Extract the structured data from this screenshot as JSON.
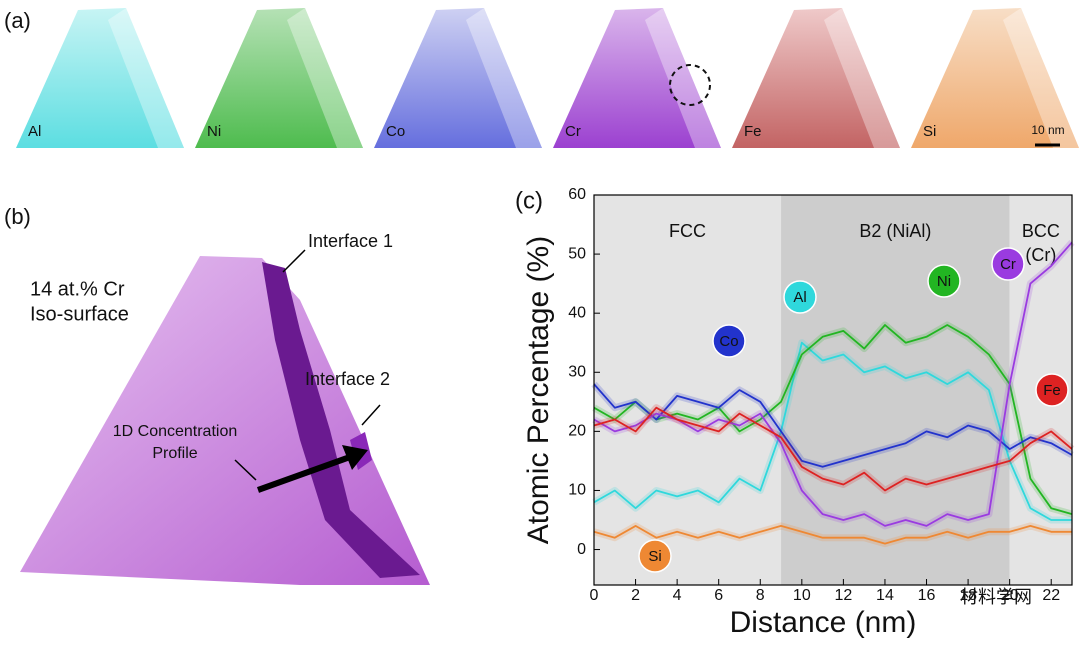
{
  "panels": {
    "a": {
      "label": "(a)",
      "elements": [
        "Al",
        "Ni",
        "Co",
        "Cr",
        "Fe",
        "Si"
      ],
      "scale_bar": "10 nm"
    },
    "b": {
      "label": "(b)",
      "iso_line1": "14 at.% Cr",
      "iso_line2": "Iso-surface",
      "interface1": "Interface 1",
      "interface2": "Interface 2",
      "profile_line1": "1D Concentration",
      "profile_line2": "Profile"
    }
  },
  "watermark": "材料学网",
  "chart_data": {
    "type": "line",
    "panel_label": "(c)",
    "xlabel": "Distance (nm)",
    "ylabel": "Atomic Percentage (%)",
    "xlim": [
      0,
      23
    ],
    "ylim": [
      -6,
      60
    ],
    "xticks": [
      0,
      2,
      4,
      6,
      8,
      10,
      12,
      14,
      16,
      18,
      20,
      22
    ],
    "yticks": [
      0,
      10,
      20,
      30,
      40,
      50,
      60
    ],
    "regions": [
      {
        "label": "FCC",
        "from": 0,
        "to": 9,
        "color": "#e4e4e4"
      },
      {
        "label": "B2 (NiAl)",
        "from": 9,
        "to": 20,
        "color": "#cdcdcd"
      },
      {
        "label": "BCC",
        "sublabel": "(Cr)",
        "from": 20,
        "to": 23,
        "color": "#e4e4e4"
      }
    ],
    "x": [
      0,
      1,
      2,
      3,
      4,
      5,
      6,
      7,
      8,
      9,
      10,
      11,
      12,
      13,
      14,
      15,
      16,
      17,
      18,
      19,
      20,
      21,
      22,
      23
    ],
    "series": [
      {
        "name": "Al",
        "color": "#2fd8dc",
        "values": [
          8,
          10,
          7,
          10,
          9,
          10,
          8,
          12,
          10,
          20,
          35,
          32,
          33,
          30,
          31,
          29,
          30,
          28,
          30,
          27,
          15,
          7,
          5,
          5
        ]
      },
      {
        "name": "Ni",
        "color": "#22b522",
        "values": [
          24,
          22,
          25,
          22,
          23,
          22,
          24,
          20,
          22,
          25,
          33,
          36,
          37,
          34,
          38,
          35,
          36,
          38,
          36,
          33,
          28,
          12,
          7,
          6
        ]
      },
      {
        "name": "Co",
        "color": "#2233cc",
        "values": [
          28,
          24,
          25,
          22,
          26,
          25,
          24,
          27,
          25,
          20,
          15,
          14,
          15,
          16,
          17,
          18,
          20,
          19,
          21,
          20,
          17,
          19,
          18,
          16
        ]
      },
      {
        "name": "Cr",
        "color": "#9a3be0",
        "values": [
          22,
          20,
          21,
          23,
          22,
          20,
          22,
          21,
          23,
          18,
          10,
          6,
          5,
          6,
          4,
          5,
          4,
          6,
          5,
          6,
          28,
          45,
          48,
          52
        ]
      },
      {
        "name": "Fe",
        "color": "#dd2222",
        "values": [
          21,
          22,
          20,
          24,
          22,
          21,
          20,
          23,
          21,
          19,
          14,
          12,
          11,
          13,
          10,
          12,
          11,
          12,
          13,
          14,
          15,
          18,
          20,
          17
        ]
      },
      {
        "name": "Si",
        "color": "#ee8833",
        "values": [
          3,
          2,
          4,
          2,
          3,
          2,
          3,
          2,
          3,
          4,
          3,
          2,
          2,
          2,
          1,
          2,
          2,
          3,
          2,
          3,
          3,
          4,
          3,
          3
        ]
      }
    ]
  }
}
